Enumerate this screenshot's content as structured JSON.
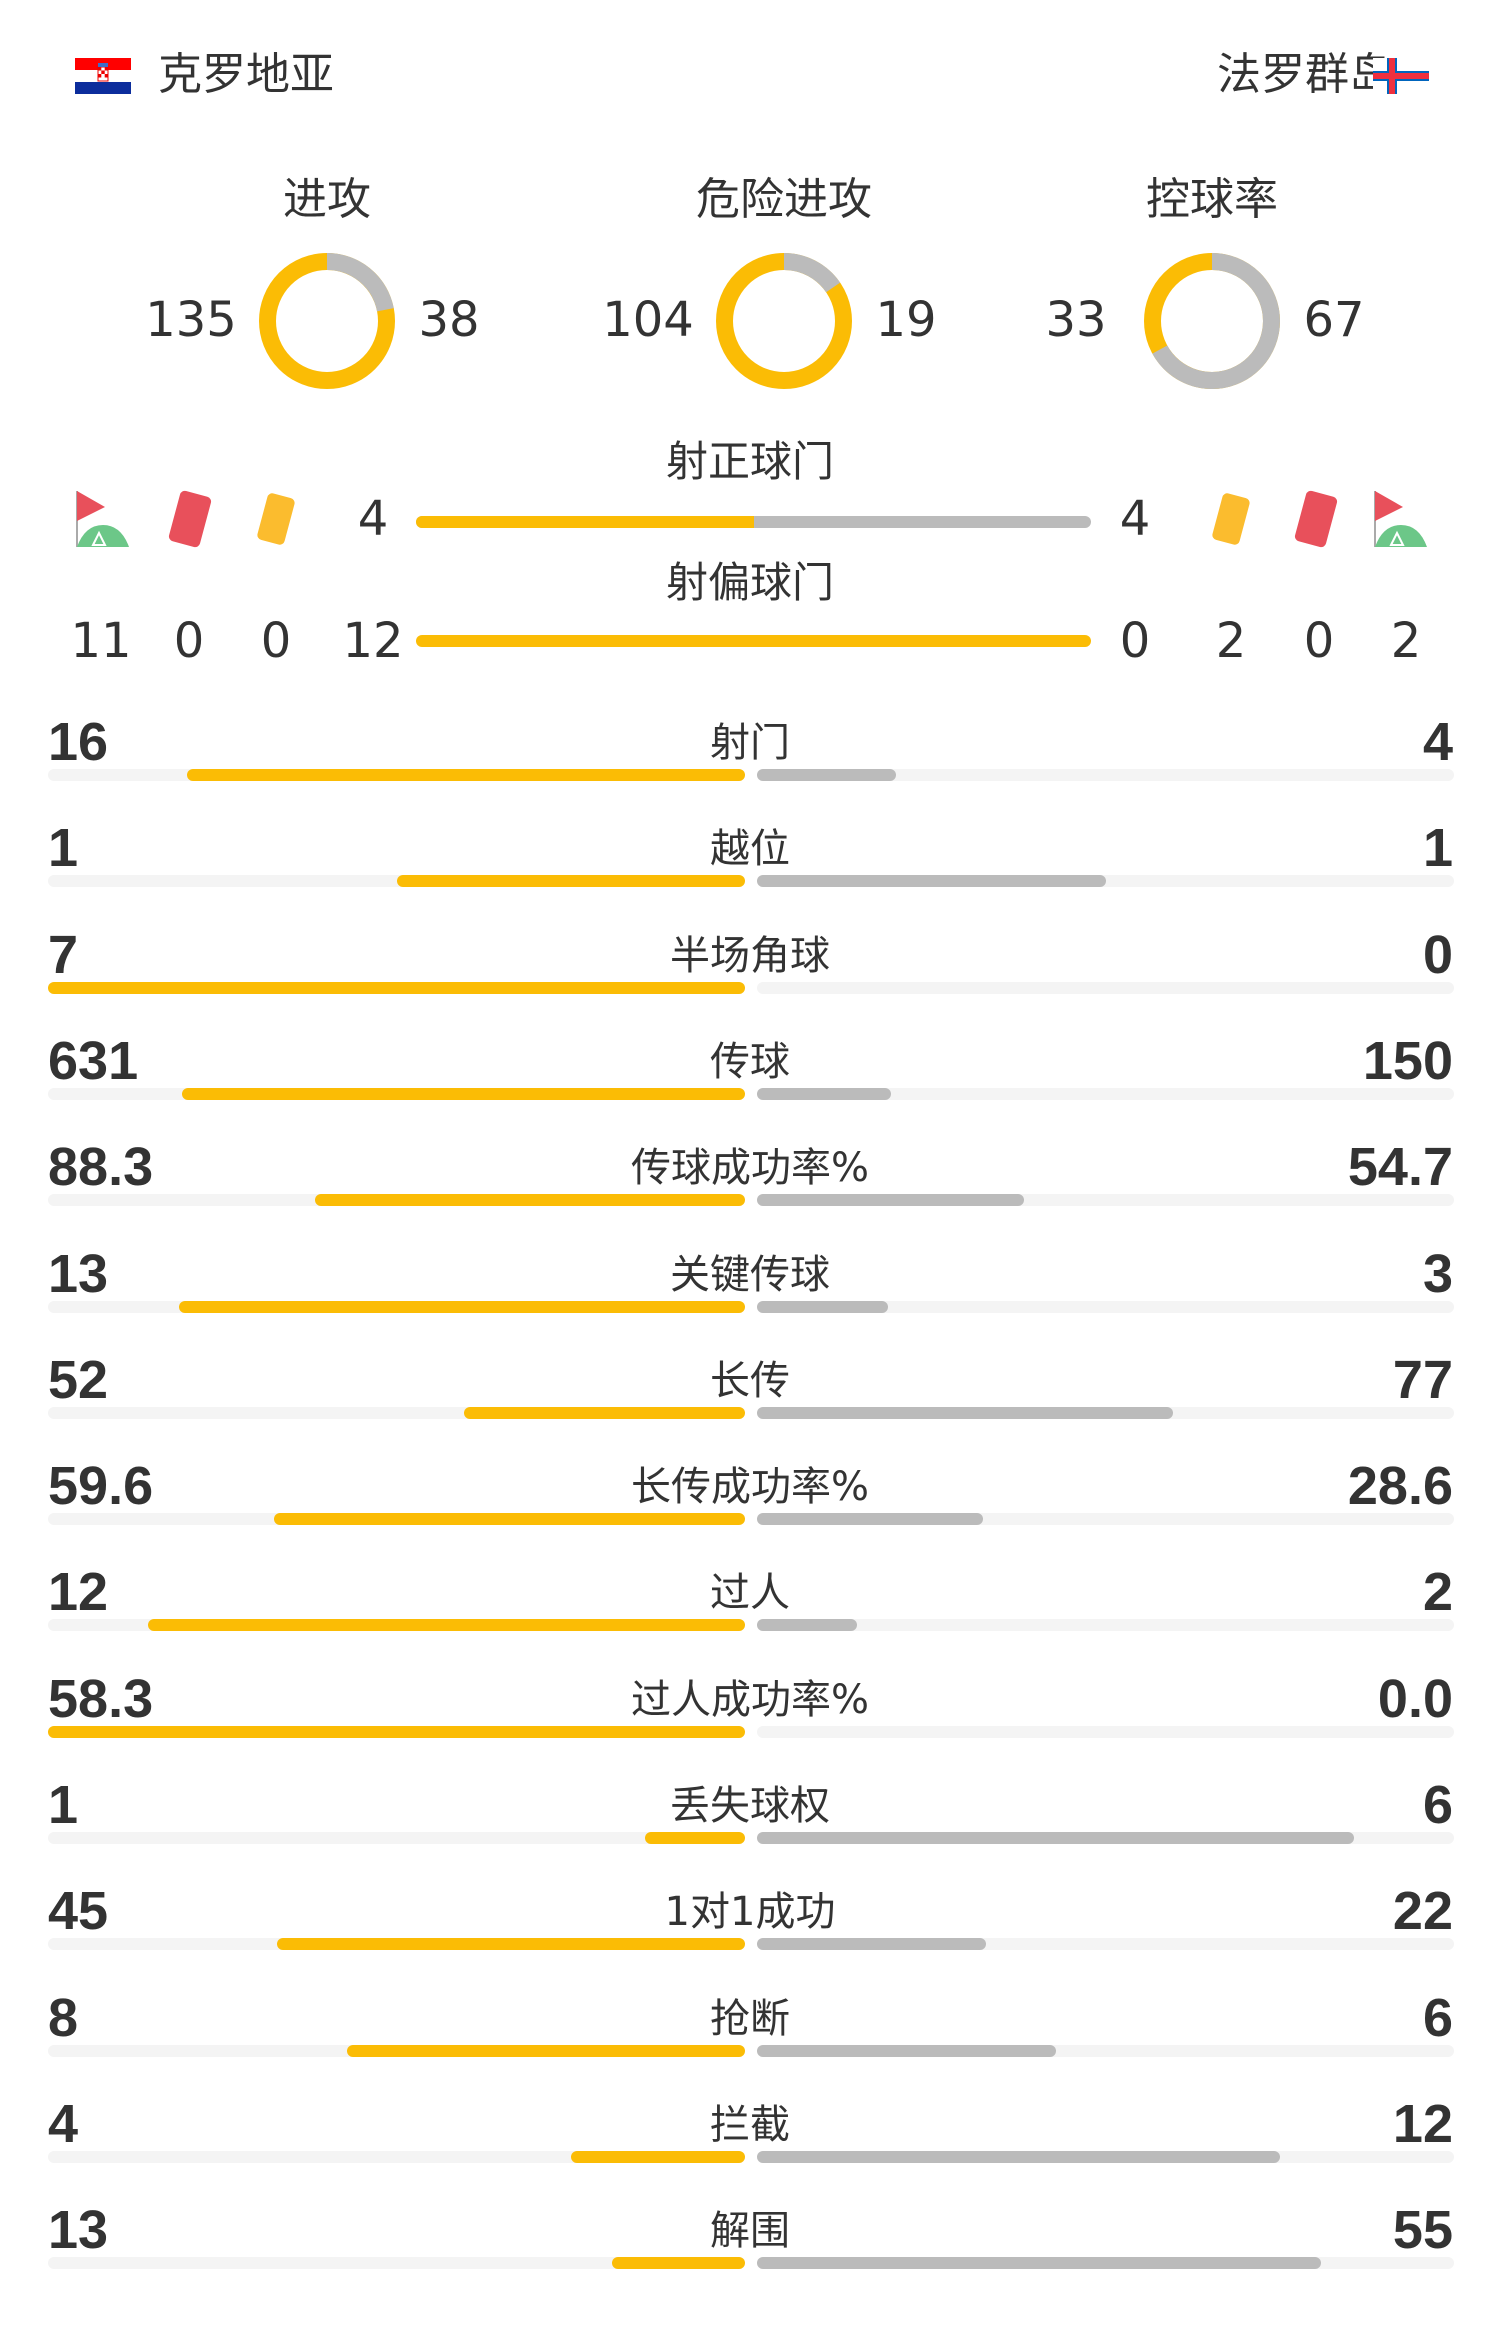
{
  "header": {
    "home_team": "克罗地亚",
    "away_team": "法罗群岛",
    "home_flag_icon": "croatia-flag",
    "away_flag_icon": "faroe-islands-flag"
  },
  "colors": {
    "home": "#fbbc05",
    "away": "#bbbbbb",
    "track": "#f4f4f4",
    "text": "#333333"
  },
  "donuts": [
    {
      "label": "进攻",
      "home": "135",
      "away": "38",
      "home_value": 135,
      "away_value": 38
    },
    {
      "label": "危险进攻",
      "home": "104",
      "away": "19",
      "home_value": 104,
      "away_value": 19
    },
    {
      "label": "控球率",
      "home": "33",
      "away": "67",
      "home_value": 33,
      "away_value": 67
    }
  ],
  "goal_stats": {
    "on_target_label": "射正球门",
    "on_target_home": "4",
    "on_target_away": "4",
    "off_target_label": "射偏球门",
    "off_target_home": "12",
    "off_target_away": "0",
    "home_corners": "11",
    "home_red_cards": "0",
    "home_yellow_cards": "0",
    "away_yellow_cards": "2",
    "away_red_cards": "0",
    "away_corners": "2",
    "icons": [
      "corner-flag-icon",
      "red-card-icon",
      "yellow-card-icon"
    ]
  },
  "stats": [
    {
      "label": "射门",
      "home": "16",
      "away": "4"
    },
    {
      "label": "越位",
      "home": "1",
      "away": "1"
    },
    {
      "label": "半场角球",
      "home": "7",
      "away": "0"
    },
    {
      "label": "传球",
      "home": "631",
      "away": "150"
    },
    {
      "label": "传球成功率%",
      "home": "88.3",
      "away": "54.7"
    },
    {
      "label": "关键传球",
      "home": "13",
      "away": "3"
    },
    {
      "label": "长传",
      "home": "52",
      "away": "77"
    },
    {
      "label": "长传成功率%",
      "home": "59.6",
      "away": "28.6"
    },
    {
      "label": "过人",
      "home": "12",
      "away": "2"
    },
    {
      "label": "过人成功率%",
      "home": "58.3",
      "away": "0.0"
    },
    {
      "label": "丢失球权",
      "home": "1",
      "away": "6"
    },
    {
      "label": "1对1成功",
      "home": "45",
      "away": "22"
    },
    {
      "label": "抢断",
      "home": "8",
      "away": "6"
    },
    {
      "label": "拦截",
      "home": "4",
      "away": "12"
    },
    {
      "label": "解围",
      "home": "13",
      "away": "55"
    }
  ]
}
